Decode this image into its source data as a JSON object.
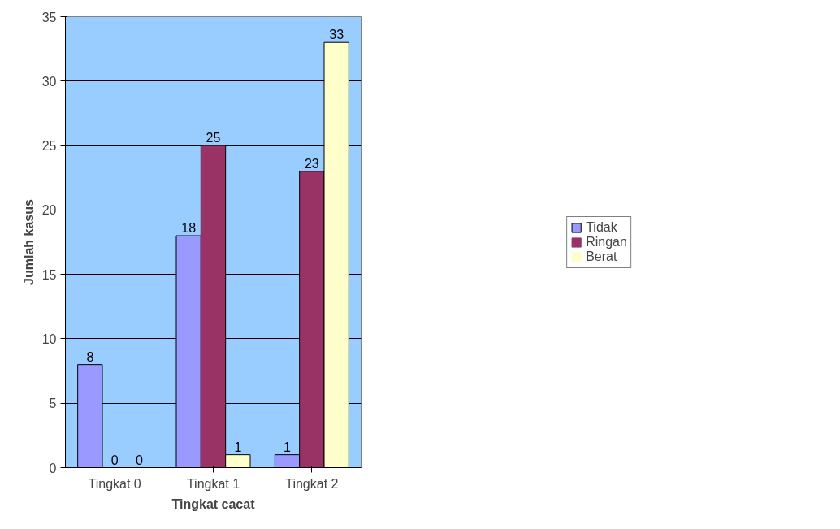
{
  "chart_data": {
    "type": "bar",
    "xlabel": "Tingkat cacat",
    "ylabel": "Jumlah kasus",
    "categories": [
      "Tingkat 0",
      "Tingkat 1",
      "Tingkat 2"
    ],
    "series": [
      {
        "name": "Tidak",
        "color": "#9999ff",
        "values": [
          8,
          18,
          1
        ]
      },
      {
        "name": "Ringan",
        "color": "#993366",
        "values": [
          0,
          25,
          23
        ]
      },
      {
        "name": "Berat",
        "color": "#ffffcc",
        "values": [
          0,
          1,
          33
        ]
      }
    ],
    "ylim": [
      0,
      35
    ],
    "yticks": [
      0,
      5,
      10,
      15,
      20,
      25,
      30,
      35
    ],
    "grid": "y",
    "legend": "right",
    "data_labels": true
  }
}
